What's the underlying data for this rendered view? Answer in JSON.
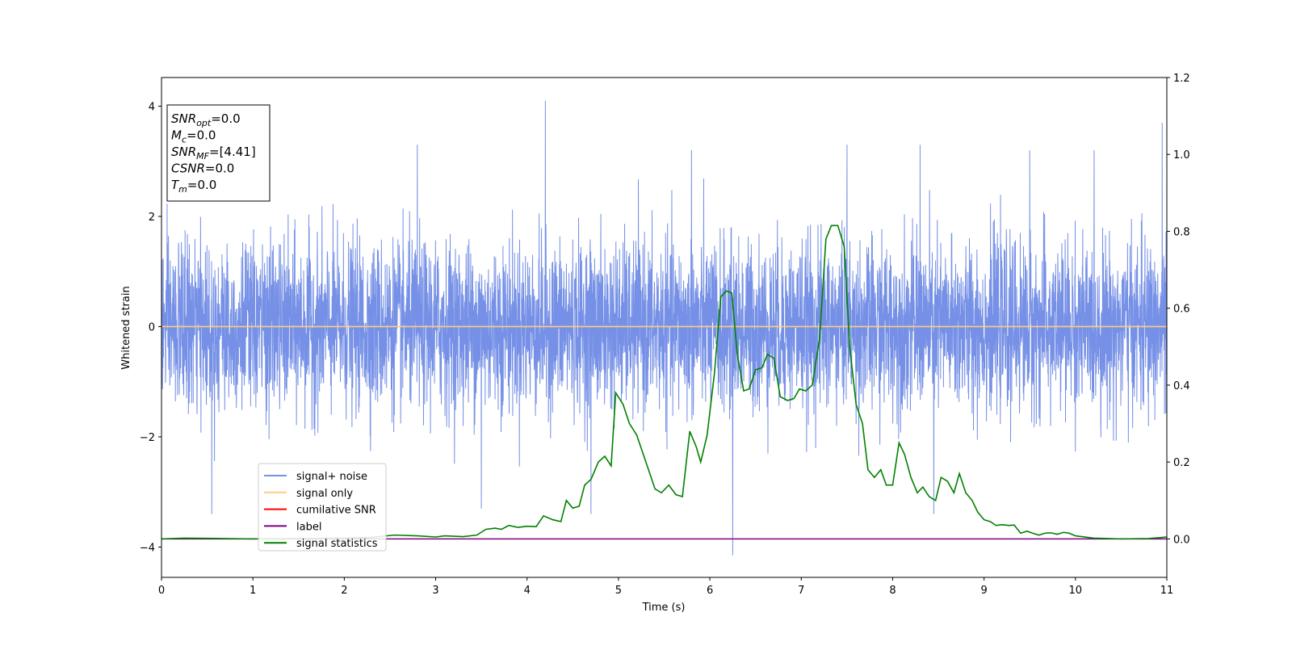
{
  "chart_data": {
    "type": "line",
    "xlabel": "Time (s)",
    "ylabel": "Whitened strain",
    "xlim": [
      0,
      11
    ],
    "ylim": [
      -4.55,
      4.52
    ],
    "y2lim": [
      -0.1,
      1.2
    ],
    "x_ticks": [
      "0",
      "1",
      "2",
      "3",
      "4",
      "5",
      "6",
      "7",
      "8",
      "9",
      "10",
      "11"
    ],
    "y_ticks": [
      "4",
      "2",
      "0",
      "−2",
      "−4"
    ],
    "y2_ticks": [
      "1.2",
      "1.0",
      "0.8",
      "0.6",
      "0.4",
      "0.2",
      "0.0"
    ],
    "grid": false,
    "legend_placement": "lower-left",
    "annotations": [
      {
        "var": "SNR",
        "sub": "opt",
        "rest": "=0.0"
      },
      {
        "var": "M",
        "sub": "c",
        "rest": "=0.0"
      },
      {
        "var": "SNR",
        "sub": "MF",
        "rest": "=[4.41]"
      },
      {
        "var": "CSNR",
        "sub": "",
        "rest": "=0.0"
      },
      {
        "var": "T",
        "sub": "m",
        "rest": "=0.0"
      }
    ],
    "series": [
      {
        "name": "signal+ noise",
        "color": "#7590e6",
        "axis": "left",
        "kind": "noise",
        "x_range": [
          0,
          11
        ],
        "approx_sigma": 0.75,
        "approx_extremes": [
          {
            "x": 0.55,
            "y": -3.4
          },
          {
            "x": 4.2,
            "y": 4.1
          },
          {
            "x": 6.25,
            "y": -4.15
          },
          {
            "x": 10.95,
            "y": 3.7
          },
          {
            "x": 2.8,
            "y": 3.3
          },
          {
            "x": 8.3,
            "y": 3.3
          },
          {
            "x": 3.5,
            "y": -3.3
          },
          {
            "x": 4.7,
            "y": -3.4
          },
          {
            "x": 8.45,
            "y": -3.4
          },
          {
            "x": 5.8,
            "y": 3.2
          },
          {
            "x": 7.5,
            "y": 3.3
          },
          {
            "x": 9.5,
            "y": 3.2
          }
        ]
      },
      {
        "name": "signal only",
        "color": "#ffcc80",
        "axis": "left",
        "points": [
          [
            0,
            0
          ],
          [
            11,
            0
          ]
        ]
      },
      {
        "name": "cumilative SNR",
        "color": "#ff0000",
        "axis": "left",
        "points": []
      },
      {
        "name": "label",
        "color": "#800080",
        "axis": "right",
        "points": [
          [
            0,
            0.0
          ],
          [
            11,
            0.0
          ]
        ]
      },
      {
        "name": "signal statistics",
        "color": "#008000",
        "axis": "right",
        "points": [
          [
            0.0,
            0.0
          ],
          [
            0.25,
            0.002
          ],
          [
            0.5,
            0.0015
          ],
          [
            1.0,
            0.0
          ],
          [
            1.5,
            0.001
          ],
          [
            2.0,
            0.002
          ],
          [
            2.3,
            0.004
          ],
          [
            2.55,
            0.01
          ],
          [
            2.8,
            0.008
          ],
          [
            3.0,
            0.005
          ],
          [
            3.1,
            0.008
          ],
          [
            3.3,
            0.006
          ],
          [
            3.45,
            0.01
          ],
          [
            3.55,
            0.025
          ],
          [
            3.65,
            0.028
          ],
          [
            3.72,
            0.025
          ],
          [
            3.8,
            0.035
          ],
          [
            3.9,
            0.03
          ],
          [
            4.0,
            0.033
          ],
          [
            4.1,
            0.032
          ],
          [
            4.18,
            0.06
          ],
          [
            4.28,
            0.05
          ],
          [
            4.37,
            0.045
          ],
          [
            4.43,
            0.1
          ],
          [
            4.5,
            0.08
          ],
          [
            4.57,
            0.085
          ],
          [
            4.63,
            0.14
          ],
          [
            4.7,
            0.155
          ],
          [
            4.78,
            0.2
          ],
          [
            4.85,
            0.215
          ],
          [
            4.92,
            0.19
          ],
          [
            4.97,
            0.38
          ],
          [
            5.05,
            0.35
          ],
          [
            5.12,
            0.3
          ],
          [
            5.2,
            0.27
          ],
          [
            5.3,
            0.2
          ],
          [
            5.4,
            0.13
          ],
          [
            5.47,
            0.12
          ],
          [
            5.55,
            0.14
          ],
          [
            5.63,
            0.115
          ],
          [
            5.7,
            0.11
          ],
          [
            5.78,
            0.28
          ],
          [
            5.85,
            0.24
          ],
          [
            5.9,
            0.2
          ],
          [
            5.97,
            0.27
          ],
          [
            6.05,
            0.43
          ],
          [
            6.12,
            0.63
          ],
          [
            6.18,
            0.645
          ],
          [
            6.24,
            0.64
          ],
          [
            6.3,
            0.48
          ],
          [
            6.37,
            0.385
          ],
          [
            6.43,
            0.39
          ],
          [
            6.5,
            0.44
          ],
          [
            6.57,
            0.445
          ],
          [
            6.63,
            0.48
          ],
          [
            6.7,
            0.47
          ],
          [
            6.77,
            0.37
          ],
          [
            6.85,
            0.36
          ],
          [
            6.92,
            0.365
          ],
          [
            6.98,
            0.39
          ],
          [
            7.05,
            0.385
          ],
          [
            7.12,
            0.4
          ],
          [
            7.2,
            0.52
          ],
          [
            7.27,
            0.78
          ],
          [
            7.33,
            0.815
          ],
          [
            7.4,
            0.815
          ],
          [
            7.47,
            0.76
          ],
          [
            7.53,
            0.5
          ],
          [
            7.6,
            0.35
          ],
          [
            7.67,
            0.3
          ],
          [
            7.73,
            0.18
          ],
          [
            7.8,
            0.16
          ],
          [
            7.87,
            0.18
          ],
          [
            7.93,
            0.14
          ],
          [
            8.0,
            0.14
          ],
          [
            8.07,
            0.25
          ],
          [
            8.13,
            0.22
          ],
          [
            8.2,
            0.16
          ],
          [
            8.27,
            0.12
          ],
          [
            8.33,
            0.135
          ],
          [
            8.4,
            0.11
          ],
          [
            8.47,
            0.1
          ],
          [
            8.53,
            0.16
          ],
          [
            8.6,
            0.15
          ],
          [
            8.67,
            0.12
          ],
          [
            8.73,
            0.17
          ],
          [
            8.8,
            0.12
          ],
          [
            8.87,
            0.1
          ],
          [
            8.93,
            0.07
          ],
          [
            9.0,
            0.05
          ],
          [
            9.07,
            0.045
          ],
          [
            9.13,
            0.035
          ],
          [
            9.2,
            0.037
          ],
          [
            9.27,
            0.035
          ],
          [
            9.33,
            0.036
          ],
          [
            9.4,
            0.015
          ],
          [
            9.47,
            0.02
          ],
          [
            9.53,
            0.015
          ],
          [
            9.6,
            0.01
          ],
          [
            9.67,
            0.015
          ],
          [
            9.73,
            0.016
          ],
          [
            9.8,
            0.012
          ],
          [
            9.87,
            0.017
          ],
          [
            9.93,
            0.015
          ],
          [
            10.0,
            0.008
          ],
          [
            10.2,
            0.002
          ],
          [
            10.5,
            0.0
          ],
          [
            10.8,
            0.001
          ],
          [
            11.0,
            0.005
          ]
        ]
      }
    ]
  }
}
